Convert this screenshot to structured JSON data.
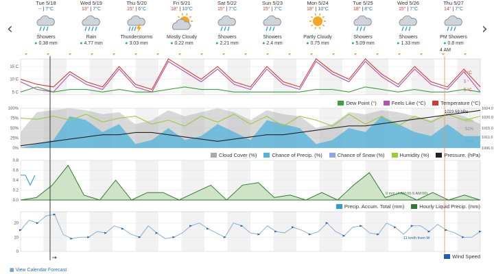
{
  "nav": {
    "prev": "‹",
    "next": "›"
  },
  "days": [
    {
      "date": "Tue 5/18",
      "hi": "--",
      "lo": "7°C",
      "condition": "Showers",
      "precip": "0.38 mm",
      "icon": "showers"
    },
    {
      "date": "Wed 5/19",
      "hi": "13°",
      "lo": "7°C",
      "condition": "Rain",
      "precip": "4.77 mm",
      "icon": "rain"
    },
    {
      "date": "Thu 5/20",
      "hi": "15°",
      "lo": "6°C",
      "condition": "Thunderstorms",
      "precip": "3.03 mm",
      "icon": "thunder"
    },
    {
      "date": "Fri 5/21",
      "hi": "18°",
      "lo": "10°C",
      "condition": "Mostly Cloudy",
      "precip": "0.22 mm",
      "icon": "mostly-cloudy"
    },
    {
      "date": "Sat 5/22",
      "hi": "15°",
      "lo": "7°C",
      "condition": "Showers",
      "precip": "2.21 mm",
      "icon": "showers"
    },
    {
      "date": "Sun 5/23",
      "hi": "15°",
      "lo": "7°C",
      "condition": "Showers",
      "precip": "2.4 mm",
      "icon": "showers"
    },
    {
      "date": "Mon 5/24",
      "hi": "18°",
      "lo": "10°C",
      "condition": "Partly Cloudy",
      "precip": "0.75 mm",
      "icon": "partly-cloudy"
    },
    {
      "date": "Tue 5/25",
      "hi": "18°",
      "lo": "8°C",
      "condition": "Showers",
      "precip": "5.09 mm",
      "icon": "showers"
    },
    {
      "date": "Wed 5/26",
      "hi": "15°",
      "lo": "7°C",
      "condition": "Showers",
      "precip": "1.33 mm",
      "icon": "showers"
    },
    {
      "date": "Thu 5/27",
      "hi": "14°",
      "lo": "7°C",
      "condition": "PM Showers",
      "precip": "0.8 mm",
      "icon": "showers",
      "time_label": "4 AM"
    }
  ],
  "colors": {
    "temp": "#d23b2b",
    "feels": "#b44fb4",
    "dew": "#3aa33a",
    "cloud": "#aaaaaa",
    "precip_chance": "#4fb3dc",
    "snow": "#8aa7e8",
    "humidity": "#9acd32",
    "pressure": "#222222",
    "accum": "#2a9fd6",
    "liquid": "#2f7a2f",
    "wind": "#1e5fb4",
    "now": "#f09a5a"
  },
  "chart_data": [
    {
      "type": "line",
      "title": "Temperature",
      "ylim": [
        4,
        18
      ],
      "yticks": [
        "15 C",
        "10 C",
        "5 C"
      ],
      "ytick_values": [
        15,
        10,
        5
      ],
      "series": [
        {
          "name": "Temperature (°C)",
          "values": [
            10,
            8,
            7,
            13,
            9,
            7,
            15,
            8,
            6,
            18,
            14,
            10,
            15,
            9,
            7,
            15,
            9,
            7,
            18,
            13,
            10,
            18,
            12,
            8,
            15,
            9,
            7,
            14,
            7
          ]
        },
        {
          "name": "Feels Like (°C)",
          "values": [
            9,
            6,
            5,
            12,
            8,
            6,
            14,
            7,
            5,
            17,
            13,
            9,
            14,
            8,
            6,
            14,
            8,
            6,
            17,
            12,
            9,
            17,
            11,
            7,
            14,
            8,
            6,
            13,
            5
          ]
        },
        {
          "name": "Dew Point (°)",
          "values": [
            5,
            7,
            5,
            6,
            6,
            5,
            6,
            5,
            5,
            6,
            7,
            6,
            6,
            5,
            5,
            5,
            5,
            5,
            6,
            6,
            5,
            7,
            6,
            5,
            6,
            5,
            5,
            6,
            5
          ]
        }
      ],
      "annotations": [
        "7 °C",
        "5 °",
        "5 °C"
      ],
      "legend": [
        "Dew Point (°)",
        "Feels Like (°C)",
        "Temperature (°C)"
      ]
    },
    {
      "type": "area",
      "title": "Clouds / Humidity / Pressure",
      "yticks_left": [
        "100%",
        "75%",
        "50%",
        "25%",
        "0%"
      ],
      "ytick_left_values": [
        100,
        75,
        50,
        25,
        0
      ],
      "yticks_right": [
        "1024.0",
        "1020.0",
        "1015.0",
        "1011.0",
        "1006.0"
      ],
      "ytick_right_values": [
        1024,
        1020,
        1015,
        1011,
        1006
      ],
      "series": [
        {
          "name": "Cloud Cover (%)",
          "values": [
            40,
            90,
            95,
            100,
            95,
            85,
            90,
            60,
            70,
            95,
            80,
            90,
            100,
            90,
            70,
            95,
            85,
            80,
            50,
            60,
            90,
            85,
            95,
            90,
            80,
            70,
            90,
            80,
            60
          ]
        },
        {
          "name": "Chance of Precip. (%)",
          "values": [
            0,
            10,
            20,
            80,
            70,
            40,
            60,
            10,
            20,
            50,
            20,
            30,
            60,
            40,
            20,
            70,
            60,
            50,
            10,
            20,
            50,
            40,
            80,
            60,
            40,
            30,
            60,
            30,
            30
          ]
        },
        {
          "name": "Chance of Snow (%)",
          "values": [
            0,
            0,
            0,
            0,
            0,
            0,
            0,
            0,
            0,
            0,
            0,
            0,
            0,
            0,
            0,
            0,
            0,
            0,
            0,
            0,
            0,
            0,
            0,
            0,
            0,
            0,
            0,
            0,
            0
          ]
        },
        {
          "name": "Humidity (%)",
          "values": [
            75,
            72,
            80,
            70,
            85,
            65,
            75,
            80,
            60,
            70,
            55,
            80,
            65,
            85,
            60,
            80,
            55,
            80,
            70,
            55,
            85,
            60,
            80,
            55,
            80,
            65,
            85,
            70,
            80
          ]
        },
        {
          "name": "Pressure. (hPa)",
          "values": [
            1007,
            1008,
            1009,
            1010,
            1011,
            1012,
            1012,
            1013,
            1013,
            1012,
            1011,
            1010,
            1009,
            1010,
            1011,
            1012,
            1012,
            1013,
            1014,
            1015,
            1016,
            1016,
            1017,
            1018,
            1019,
            1020,
            1021,
            1022,
            1023
          ]
        }
      ],
      "annotations": [
        "1023.59 hPa",
        "85%",
        "52%",
        "24%"
      ],
      "legend": [
        "Cloud Cover (%)",
        "Chance of Precip. (%)",
        "Chance of Snow (%)",
        "Humidity (%)",
        "Pressure. (hPa)"
      ]
    },
    {
      "type": "area",
      "title": "Precipitation",
      "ylim": [
        0,
        0.8
      ],
      "yticks": [
        "0.8",
        "0.6",
        "0.4",
        "0.2",
        "0.0"
      ],
      "ytick_values": [
        0.8,
        0.6,
        0.4,
        0.2,
        0.0
      ],
      "series": [
        {
          "name": "Precip. Accum. Total (mm)",
          "values": [
            0.5,
            0.5,
            0.3,
            0.5
          ]
        },
        {
          "name": "Hourly Liquid Precip. (mm)",
          "values": [
            0,
            0.05,
            0.3,
            0.7,
            0.1,
            0,
            0.4,
            0,
            0.15,
            0.15,
            0,
            0.15,
            0.3,
            0,
            0.3,
            0.35,
            0.05,
            0.1,
            0,
            0.15,
            0,
            0.3,
            0.55,
            0.05,
            0.15,
            0,
            0.15,
            0,
            0.1,
            0
          ]
        }
      ],
      "annotations": [
        "0 mm (4 AM:00-5 AM:00)"
      ],
      "legend": [
        "Precip. Accum. Total (mm)",
        "Hourly Liquid Precip. (mm)"
      ]
    },
    {
      "type": "line",
      "title": "Wind",
      "ylim": [
        0,
        28
      ],
      "yticks": [
        "20",
        "10",
        "0"
      ],
      "ytick_values": [
        20,
        10,
        0
      ],
      "series": [
        {
          "name": "Wind Speed",
          "values": [
            15,
            22,
            20,
            25,
            26,
            12,
            9,
            10,
            10,
            14,
            13,
            18,
            16,
            12,
            10,
            18,
            13,
            9,
            10,
            13,
            18,
            20,
            16,
            13,
            10,
            20,
            18,
            13,
            12,
            18,
            14,
            13,
            17,
            15,
            12,
            14,
            20,
            14,
            11,
            17,
            18,
            13,
            12,
            20,
            17,
            12,
            18,
            18,
            14,
            19,
            15,
            13,
            10,
            10,
            14
          ]
        }
      ],
      "annotations": [
        "11 km/h from W"
      ],
      "legend": [
        "Wind Speed"
      ]
    }
  ],
  "footer": {
    "link": "View Calendar Forecast"
  }
}
